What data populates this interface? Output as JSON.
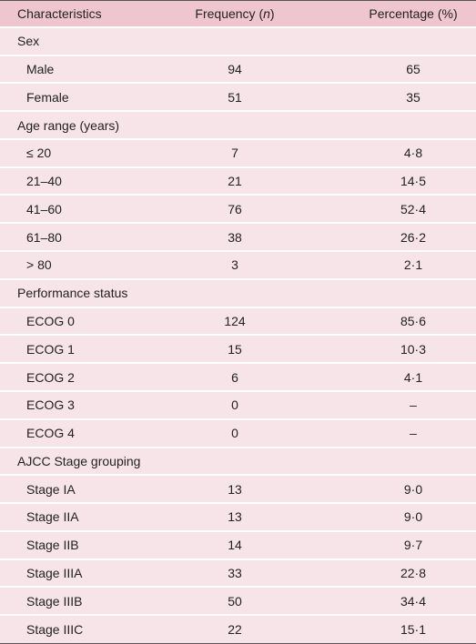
{
  "table": {
    "header": {
      "characteristics": "Characteristics",
      "frequency": [
        "Frequency (",
        "n",
        ")"
      ],
      "percentage": "Percentage (%)"
    },
    "rows": [
      {
        "section": "Sex"
      },
      {
        "label": "Male",
        "frequency": 94,
        "percentage": "65"
      },
      {
        "label": "Female",
        "frequency": 51,
        "percentage": "35"
      },
      {
        "section": "Age range (years)"
      },
      {
        "label": "≤ 20",
        "frequency": 7,
        "percentage": "4·8"
      },
      {
        "label": "21–40",
        "frequency": 21,
        "percentage": "14·5"
      },
      {
        "label": "41–60",
        "frequency": 76,
        "percentage": "52·4"
      },
      {
        "label": "61–80",
        "frequency": 38,
        "percentage": "26·2"
      },
      {
        "label": "> 80",
        "frequency": 3,
        "percentage": "2·1"
      },
      {
        "section": "Performance status"
      },
      {
        "label": "ECOG 0",
        "frequency": 124,
        "percentage": "85·6"
      },
      {
        "label": "ECOG 1",
        "frequency": 15,
        "percentage": "10·3"
      },
      {
        "label": "ECOG 2",
        "frequency": 6,
        "percentage": "4·1"
      },
      {
        "label": "ECOG 3",
        "frequency": 0,
        "percentage": "–"
      },
      {
        "label": "ECOG 4",
        "frequency": 0,
        "percentage": "–"
      },
      {
        "section": "AJCC Stage grouping"
      },
      {
        "label": "Stage IA",
        "frequency": 13,
        "percentage": "9·0"
      },
      {
        "label": "Stage IIA",
        "frequency": 13,
        "percentage": "9·0"
      },
      {
        "label": "Stage IIB",
        "frequency": 14,
        "percentage": "9·7"
      },
      {
        "label": "Stage IIIA",
        "frequency": 33,
        "percentage": "22·8"
      },
      {
        "label": "Stage IIIB",
        "frequency": 50,
        "percentage": "34·4"
      },
      {
        "label": "Stage IIIC",
        "frequency": 22,
        "percentage": "15·1"
      }
    ]
  }
}
